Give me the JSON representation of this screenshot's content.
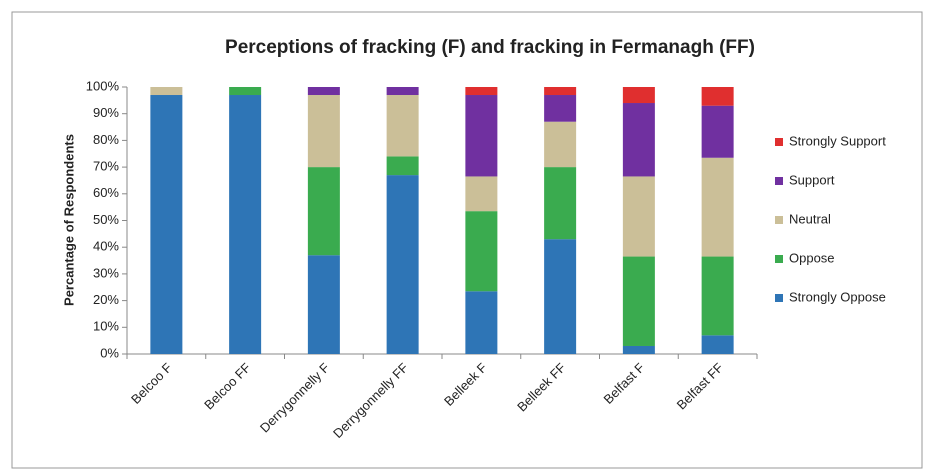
{
  "chart_data": {
    "type": "stacked_bar",
    "title": "Perceptions of fracking (F) and fracking in Fermanagh (FF)",
    "y_label": "Percantage of Respondents",
    "categories": [
      "Belcoo F",
      "Belcoo FF",
      "Derrygonnelly F",
      "Derrygonnelly FF",
      "Belleek F",
      "Belleek FF",
      "Belfast F",
      "Belfast FF"
    ],
    "series": [
      {
        "name": "Strongly Oppose",
        "color": "#2e75b6",
        "values": [
          97,
          97,
          37,
          67,
          23.5,
          43,
          3,
          7
        ]
      },
      {
        "name": "Oppose",
        "color": "#3aab4f",
        "values": [
          0,
          3,
          33,
          7,
          30,
          27,
          33.5,
          29.5
        ]
      },
      {
        "name": "Neutral",
        "color": "#cbbf98",
        "values": [
          3,
          0,
          27,
          23,
          13,
          17,
          30,
          37
        ]
      },
      {
        "name": "Support",
        "color": "#7030a0",
        "values": [
          0,
          0,
          3,
          3,
          30.5,
          10,
          27.5,
          19.5
        ]
      },
      {
        "name": "Strongly Support",
        "color": "#e02f2f",
        "values": [
          0,
          0,
          0,
          0,
          3,
          3,
          6,
          7
        ]
      }
    ],
    "ylim": [
      0,
      100
    ],
    "yticks": [
      {
        "value": 0,
        "label": "0%"
      },
      {
        "value": 10,
        "label": "10%"
      },
      {
        "value": 20,
        "label": "20%"
      },
      {
        "value": 30,
        "label": "30%"
      },
      {
        "value": 40,
        "label": "40%"
      },
      {
        "value": 50,
        "label": "50%"
      },
      {
        "value": 60,
        "label": "60%"
      },
      {
        "value": 70,
        "label": "70%"
      },
      {
        "value": 80,
        "label": "80%"
      },
      {
        "value": 90,
        "label": "90%"
      },
      {
        "value": 100,
        "label": "100%"
      }
    ],
    "grid": false,
    "legend": "right"
  }
}
